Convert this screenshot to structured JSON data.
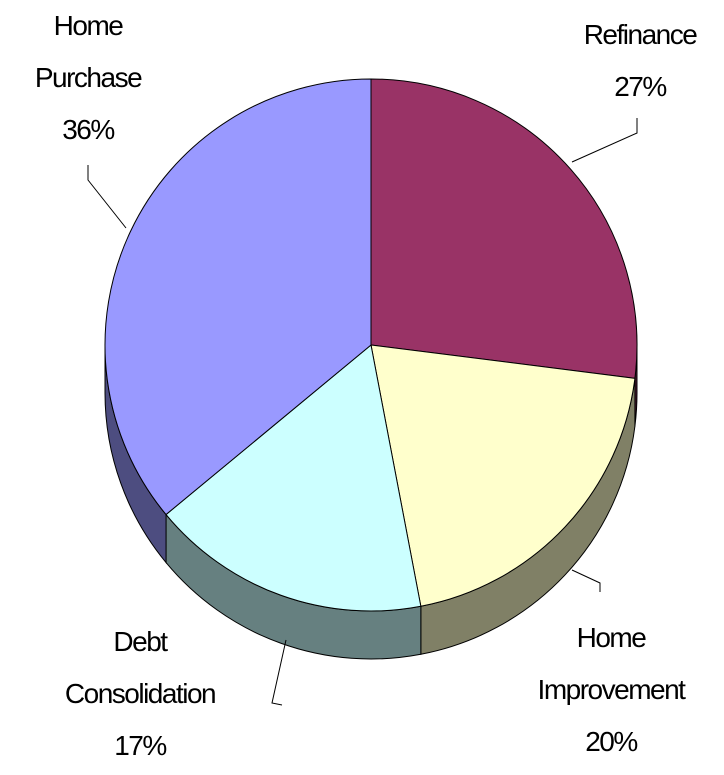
{
  "chart_data": {
    "type": "pie",
    "categories": [
      "Refinance",
      "Home Improvement",
      "Debt Consolidation",
      "Home Purchase"
    ],
    "values": [
      27,
      20,
      17,
      36
    ],
    "value_labels": [
      "27%",
      "20%",
      "17%",
      "36%"
    ],
    "colors": [
      "#993366",
      "#ffffcc",
      "#ccffff",
      "#9999ff"
    ]
  }
}
